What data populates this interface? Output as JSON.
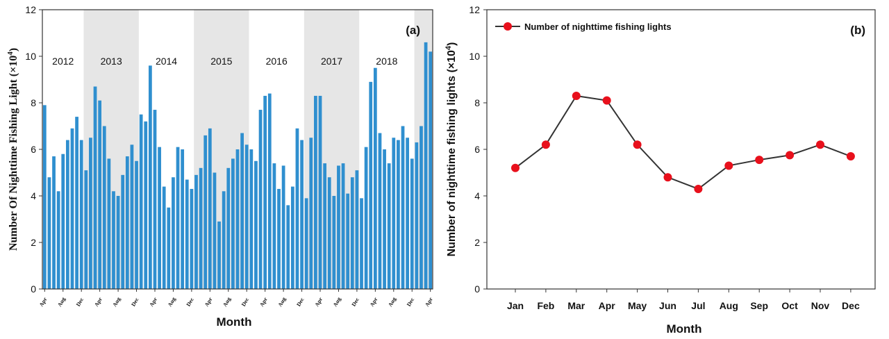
{
  "chart_data": [
    {
      "type": "bar",
      "panel_label": "(a)",
      "xlabel": "Month",
      "ylabel": "Number Of Nighttime Fishing Light (×10",
      "ylabel_exp": "4",
      "ylabel_close": ")",
      "ylim": [
        0,
        12
      ],
      "yticks": [
        "0",
        "2",
        "4",
        "6",
        "8",
        "10",
        "12"
      ],
      "bar_color": "#2f8fcf",
      "shade_color": "#e6e6e6",
      "years": [
        {
          "label": "2012",
          "start": 0,
          "end": 8,
          "shaded": false
        },
        {
          "label": "2013",
          "start": 9,
          "end": 20,
          "shaded": true
        },
        {
          "label": "2014",
          "start": 21,
          "end": 32,
          "shaded": false
        },
        {
          "label": "2015",
          "start": 33,
          "end": 44,
          "shaded": true
        },
        {
          "label": "2016",
          "start": 45,
          "end": 56,
          "shaded": false
        },
        {
          "label": "2017",
          "start": 57,
          "end": 68,
          "shaded": true
        },
        {
          "label": "2018",
          "start": 69,
          "end": 80,
          "shaded": false
        },
        {
          "label": "",
          "start": 81,
          "end": 84,
          "shaded": true
        }
      ],
      "x_ticks": [
        {
          "index": 0,
          "label": "Apr"
        },
        {
          "index": 4,
          "label": "Aug"
        },
        {
          "index": 8,
          "label": "Dec"
        },
        {
          "index": 12,
          "label": "Apr"
        },
        {
          "index": 16,
          "label": "Aug"
        },
        {
          "index": 20,
          "label": "Dec"
        },
        {
          "index": 24,
          "label": "Apr"
        },
        {
          "index": 28,
          "label": "Aug"
        },
        {
          "index": 32,
          "label": "Dec"
        },
        {
          "index": 36,
          "label": "Apr"
        },
        {
          "index": 40,
          "label": "Aug"
        },
        {
          "index": 44,
          "label": "Dec"
        },
        {
          "index": 48,
          "label": "Apr"
        },
        {
          "index": 52,
          "label": "Aug"
        },
        {
          "index": 56,
          "label": "Dec"
        },
        {
          "index": 60,
          "label": "Apr"
        },
        {
          "index": 64,
          "label": "Aug"
        },
        {
          "index": 68,
          "label": "Dec"
        },
        {
          "index": 72,
          "label": "Apr"
        },
        {
          "index": 76,
          "label": "Aug"
        },
        {
          "index": 80,
          "label": "Dec"
        },
        {
          "index": 84,
          "label": "Apr"
        }
      ],
      "values": [
        7.9,
        4.8,
        5.7,
        4.2,
        5.8,
        6.4,
        6.9,
        7.4,
        6.4,
        5.1,
        6.5,
        8.7,
        8.1,
        7.0,
        5.6,
        4.2,
        4.0,
        4.9,
        5.7,
        6.2,
        5.5,
        7.5,
        7.2,
        9.6,
        7.7,
        6.1,
        4.4,
        3.5,
        4.8,
        6.1,
        6.0,
        4.7,
        4.3,
        4.9,
        5.2,
        6.6,
        6.9,
        5.0,
        2.9,
        4.2,
        5.2,
        5.6,
        6.0,
        6.7,
        6.2,
        6.0,
        5.5,
        7.7,
        8.3,
        8.4,
        5.4,
        4.3,
        5.3,
        3.6,
        4.4,
        6.9,
        6.4,
        3.9,
        6.5,
        8.3,
        8.3,
        5.4,
        4.8,
        4.0,
        5.3,
        5.4,
        4.1,
        4.8,
        5.1,
        3.9,
        6.1,
        8.9,
        9.5,
        6.7,
        6.0,
        5.4,
        6.5,
        6.4,
        7.0,
        6.5,
        5.6,
        6.3,
        7.0,
        10.6,
        10.2
      ]
    },
    {
      "type": "line",
      "panel_label": "(b)",
      "xlabel": "Month",
      "ylabel": "Number of nighttime fishing lights (×10",
      "ylabel_exp": "4",
      "ylabel_close": ")",
      "ylim": [
        0,
        12
      ],
      "yticks": [
        "0",
        "2",
        "4",
        "6",
        "8",
        "10",
        "12"
      ],
      "legend": "top-left",
      "line_color": "#333333",
      "marker_color": "#e8101c",
      "categories": [
        "Jan",
        "Feb",
        "Mar",
        "Apr",
        "May",
        "Jun",
        "Jul",
        "Aug",
        "Sep",
        "Oct",
        "Nov",
        "Dec"
      ],
      "series": [
        {
          "name": "Number of nighttime fishing lights",
          "values": [
            5.2,
            6.2,
            8.3,
            8.1,
            6.2,
            4.8,
            4.3,
            5.3,
            5.55,
            5.75,
            6.2,
            5.7
          ]
        }
      ]
    }
  ]
}
